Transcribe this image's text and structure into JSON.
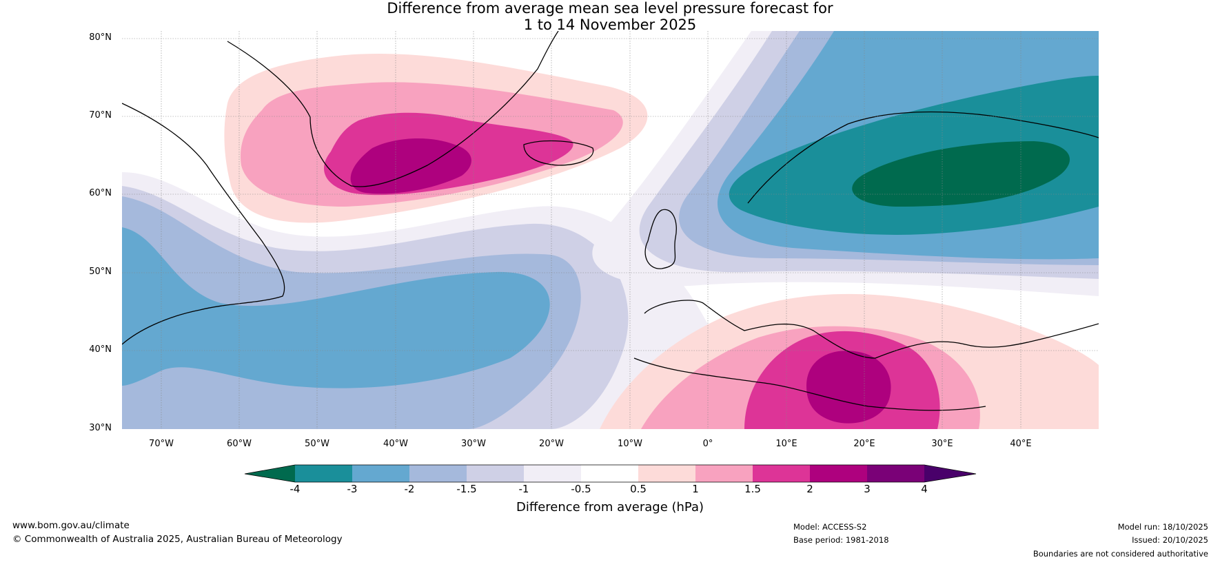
{
  "title": {
    "line1": "Difference from average mean sea level pressure forecast for",
    "line2": "1 to 14 November 2025"
  },
  "map": {
    "latitude_labels": [
      "80°N",
      "70°N",
      "60°N",
      "50°N",
      "40°N",
      "30°N"
    ],
    "longitude_labels": [
      "70°W",
      "60°W",
      "50°W",
      "40°W",
      "30°W",
      "20°W",
      "10°W",
      "0°",
      "10°E",
      "20°E",
      "30°E",
      "40°E"
    ],
    "extent": {
      "lon_min": -75,
      "lon_max": 50,
      "lat_min": 30,
      "lat_max": 81
    }
  },
  "colorbar": {
    "title": "Difference from average (hPa)",
    "tick_labels": [
      "-4",
      "-3",
      "-2",
      "-1.5",
      "-1",
      "-0.5",
      "0.5",
      "1",
      "1.5",
      "2",
      "3",
      "4"
    ],
    "colors": {
      "below_-4": "#006a4e",
      "-4_-3": "#1a8f9a",
      "-3_-2": "#64a8d0",
      "-2_-1.5": "#a5b9dc",
      "-1.5_-1": "#cfd0e6",
      "-1_-0.5": "#f1eef6",
      "-0.5_0.5": "#ffffff",
      "0.5_1": "#fddbd9",
      "1_1.5": "#f8a2bf",
      "1.5_2": "#dd3497",
      "2_3": "#ae017e",
      "3_4": "#7a0177",
      "above_4": "#49006a"
    }
  },
  "footer": {
    "website": "www.bom.gov.au/climate",
    "copyright": "© Commonwealth of Australia 2025, Australian Bureau of Meteorology",
    "model": "Model: ACCESS-S2",
    "base_period": "Base period: 1981-2018",
    "model_run": "Model run: 18/10/2025",
    "issued": "Issued: 20/10/2025",
    "disclaimer": "Boundaries are not considered authoritative"
  }
}
